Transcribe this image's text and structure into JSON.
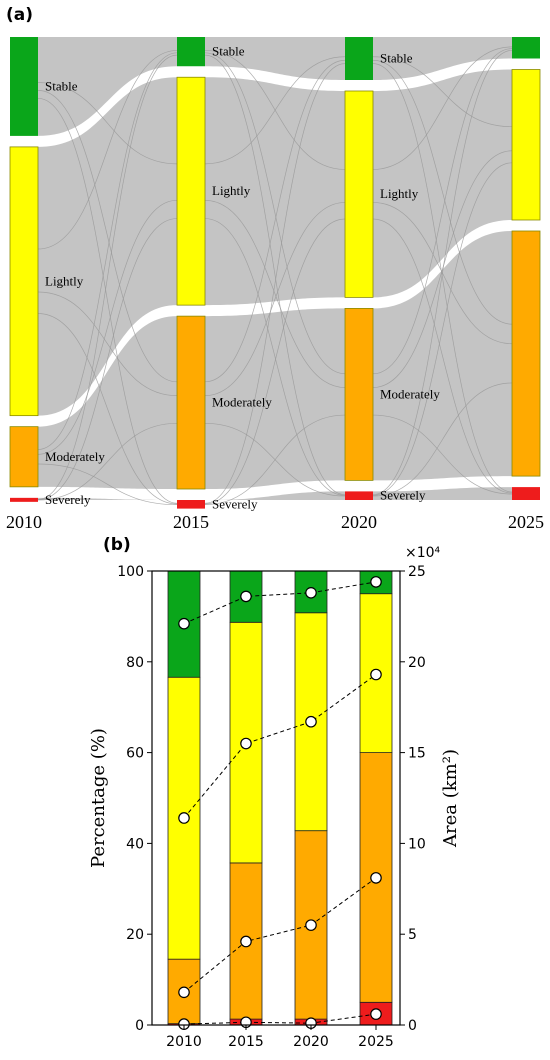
{
  "panels": {
    "a": "(a)",
    "b": "(b)"
  },
  "colors": {
    "Stable": "#0aa61a",
    "Lightly": "#ffff00",
    "Moderately": "#ffaa00",
    "Severely": "#ee1c1c",
    "flow": "#c4c4c4",
    "flow_line": "#999999",
    "node_stroke": "#8a8a00"
  },
  "chart_data": [
    {
      "type": "sankey",
      "years": [
        "2010",
        "2015",
        "2020",
        "2025"
      ],
      "categories": [
        "Stable",
        "Lightly",
        "Moderately",
        "Severely"
      ],
      "node_labels": [
        [
          "Stable",
          "Lightly",
          "Moderately",
          "Severely"
        ],
        [
          "Stable",
          "Lightly",
          "Moderately",
          "Severely"
        ],
        [
          "Stable",
          "Lightly",
          "Moderately",
          "Severely"
        ],
        [
          "",
          "",
          "",
          ""
        ]
      ],
      "percentages": [
        [
          23.0,
          62.5,
          14.0,
          0.5
        ],
        [
          6.8,
          53.0,
          40.2,
          2.0
        ],
        [
          10.0,
          48.0,
          40.0,
          2.0
        ],
        [
          5.0,
          35.0,
          57.0,
          3.0
        ]
      ]
    },
    {
      "type": "bar",
      "stacked": true,
      "categories": [
        "2010",
        "2015",
        "2020",
        "2025"
      ],
      "series": [
        {
          "key": "Severely",
          "values": [
            0.3,
            1.3,
            1.3,
            5.0
          ]
        },
        {
          "key": "Moderately",
          "values": [
            14.2,
            34.4,
            41.5,
            55.0
          ]
        },
        {
          "key": "Lightly",
          "values": [
            62.1,
            53.0,
            48.0,
            35.0
          ]
        },
        {
          "key": "Stable",
          "values": [
            23.4,
            11.3,
            9.2,
            5.0
          ]
        }
      ],
      "area_lines": [
        [
          0.05,
          0.15,
          0.1,
          0.6
        ],
        [
          1.8,
          4.6,
          5.5,
          8.1
        ],
        [
          11.4,
          15.5,
          16.7,
          19.3
        ],
        [
          22.1,
          23.6,
          23.8,
          24.4
        ]
      ],
      "ylabel": "Percentage (%)",
      "y2label": "Area (km²)",
      "y2_multiplier": "×10⁴",
      "ylim": [
        0,
        100
      ],
      "y2lim": [
        0,
        25
      ],
      "yticks": [
        "0",
        "20",
        "40",
        "60",
        "80",
        "100"
      ],
      "y2ticks": [
        "0",
        "5",
        "10",
        "15",
        "20",
        "25"
      ]
    }
  ]
}
